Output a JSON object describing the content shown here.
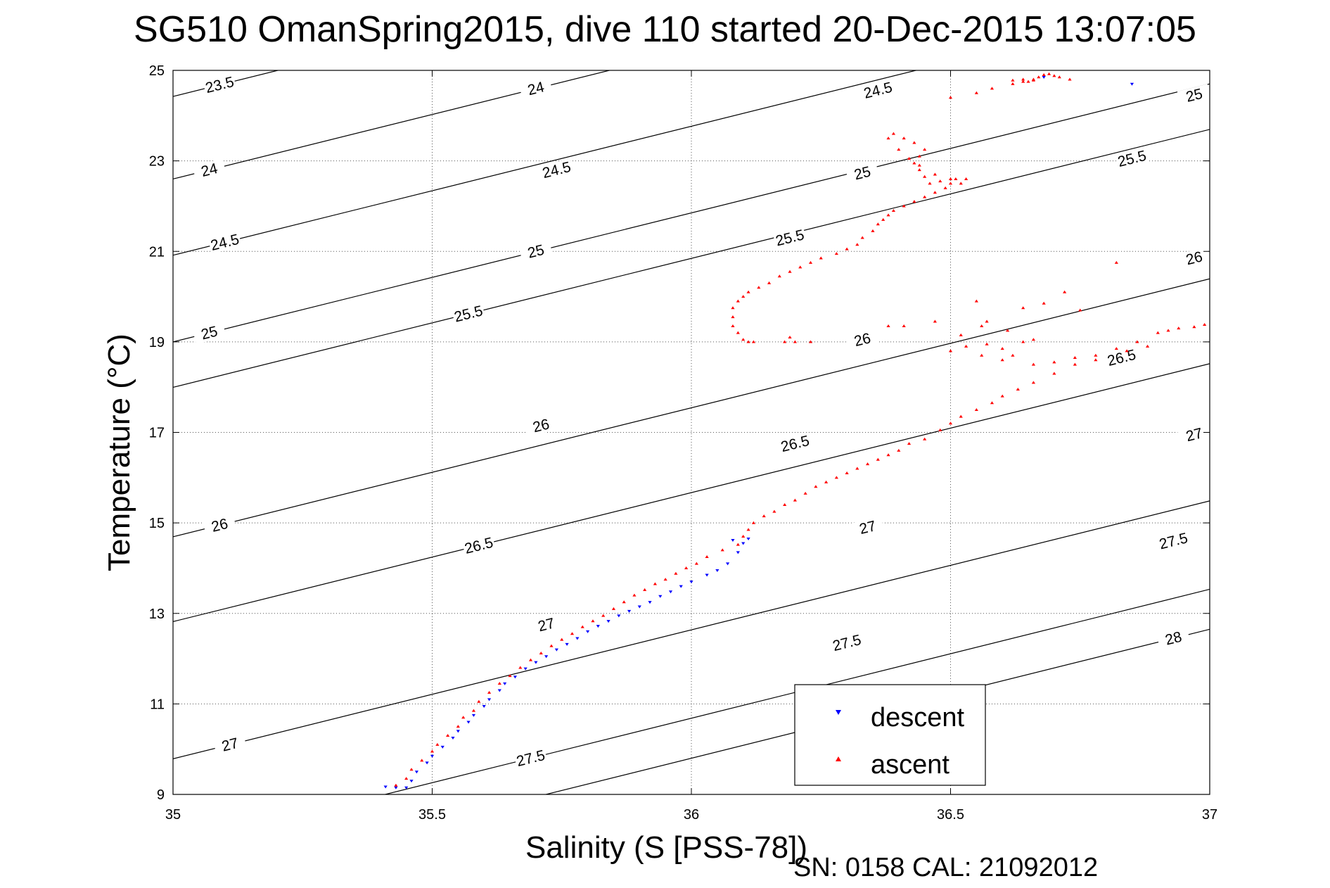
{
  "chart_data": {
    "type": "scatter",
    "title": "SG510 OmanSpring2015, dive 110 started 20-Dec-2015 13:07:05",
    "xlabel": "Salinity (S [PSS-78])",
    "ylabel": "Temperature (°C)",
    "xlim": [
      35,
      37
    ],
    "ylim": [
      9,
      25
    ],
    "xticks": [
      "35",
      "35.5",
      "36",
      "36.5",
      "37"
    ],
    "yticks": [
      "9",
      "11",
      "13",
      "15",
      "17",
      "19",
      "21",
      "23",
      "25"
    ],
    "grid": true,
    "legend": {
      "placement": "bottom-right",
      "entries": [
        "descent",
        "ascent"
      ]
    },
    "colors": {
      "descent": "#0000ff",
      "ascent": "#ff0000",
      "contour": "#000000"
    },
    "density_contours": [
      {
        "level": "23.5",
        "label_points": [
          [
            35.09,
            24.68
          ]
        ]
      },
      {
        "level": "24",
        "label_points": [
          [
            35.07,
            22.8
          ],
          [
            35.7,
            24.6
          ]
        ]
      },
      {
        "level": "24.5",
        "label_points": [
          [
            35.1,
            21.2
          ],
          [
            35.74,
            22.8
          ],
          [
            36.36,
            24.56
          ]
        ]
      },
      {
        "level": "25",
        "label_points": [
          [
            35.07,
            19.2
          ],
          [
            35.7,
            21.0
          ],
          [
            36.33,
            22.73
          ],
          [
            36.97,
            24.45
          ]
        ]
      },
      {
        "level": "25.5",
        "label_points": [
          [
            35.57,
            19.62
          ],
          [
            36.19,
            21.3
          ],
          [
            36.85,
            23.05
          ]
        ]
      },
      {
        "level": "26",
        "label_points": [
          [
            35.09,
            14.95
          ],
          [
            35.71,
            17.15
          ],
          [
            36.33,
            19.05
          ],
          [
            36.97,
            20.85
          ]
        ]
      },
      {
        "level": "26.5",
        "label_points": [
          [
            35.59,
            14.5
          ],
          [
            36.2,
            16.75
          ],
          [
            36.83,
            18.65
          ]
        ]
      },
      {
        "level": "27",
        "label_points": [
          [
            35.11,
            10.1
          ],
          [
            35.72,
            12.75
          ],
          [
            36.34,
            14.9
          ],
          [
            36.97,
            16.95
          ]
        ]
      },
      {
        "level": "27.5",
        "label_points": [
          [
            35.69,
            9.8
          ],
          [
            36.3,
            12.35
          ],
          [
            36.93,
            14.6
          ]
        ]
      },
      {
        "level": "28",
        "label_points": [
          [
            36.93,
            12.45
          ]
        ]
      }
    ],
    "series": [
      {
        "name": "descent",
        "marker": "triangle-down",
        "points": [
          [
            35.41,
            9.17
          ],
          [
            35.43,
            9.15
          ],
          [
            35.45,
            9.15
          ],
          [
            35.46,
            9.3
          ],
          [
            35.47,
            9.5
          ],
          [
            35.49,
            9.7
          ],
          [
            35.5,
            9.85
          ],
          [
            35.52,
            10.05
          ],
          [
            35.54,
            10.25
          ],
          [
            35.55,
            10.4
          ],
          [
            35.57,
            10.6
          ],
          [
            35.58,
            10.75
          ],
          [
            35.6,
            10.95
          ],
          [
            35.61,
            11.1
          ],
          [
            35.63,
            11.3
          ],
          [
            35.64,
            11.45
          ],
          [
            35.66,
            11.6
          ],
          [
            35.68,
            11.78
          ],
          [
            35.7,
            11.92
          ],
          [
            35.72,
            12.05
          ],
          [
            35.74,
            12.2
          ],
          [
            35.76,
            12.32
          ],
          [
            35.78,
            12.45
          ],
          [
            35.8,
            12.6
          ],
          [
            35.82,
            12.72
          ],
          [
            35.84,
            12.83
          ],
          [
            35.86,
            12.95
          ],
          [
            35.88,
            13.05
          ],
          [
            35.9,
            13.15
          ],
          [
            35.92,
            13.25
          ],
          [
            35.94,
            13.38
          ],
          [
            35.96,
            13.48
          ],
          [
            35.98,
            13.6
          ],
          [
            36.0,
            13.7
          ],
          [
            36.03,
            13.85
          ],
          [
            36.05,
            13.95
          ],
          [
            36.07,
            14.1
          ],
          [
            36.08,
            14.62
          ],
          [
            36.1,
            14.55
          ],
          [
            36.11,
            14.65
          ],
          [
            36.09,
            14.35
          ],
          [
            36.85,
            24.7
          ],
          [
            36.68,
            24.85
          ]
        ]
      },
      {
        "name": "ascent",
        "marker": "triangle-up",
        "points": [
          [
            35.43,
            9.2
          ],
          [
            35.45,
            9.35
          ],
          [
            35.46,
            9.55
          ],
          [
            35.48,
            9.75
          ],
          [
            35.5,
            9.95
          ],
          [
            35.51,
            10.1
          ],
          [
            35.53,
            10.3
          ],
          [
            35.55,
            10.5
          ],
          [
            35.56,
            10.7
          ],
          [
            35.58,
            10.85
          ],
          [
            35.59,
            11.05
          ],
          [
            35.61,
            11.25
          ],
          [
            35.63,
            11.45
          ],
          [
            35.65,
            11.62
          ],
          [
            35.67,
            11.8
          ],
          [
            35.69,
            11.97
          ],
          [
            35.71,
            12.12
          ],
          [
            35.73,
            12.28
          ],
          [
            35.75,
            12.42
          ],
          [
            35.77,
            12.55
          ],
          [
            35.79,
            12.7
          ],
          [
            35.81,
            12.83
          ],
          [
            35.83,
            12.95
          ],
          [
            35.85,
            13.1
          ],
          [
            35.87,
            13.25
          ],
          [
            35.89,
            13.4
          ],
          [
            35.91,
            13.52
          ],
          [
            35.93,
            13.65
          ],
          [
            35.95,
            13.75
          ],
          [
            35.97,
            13.88
          ],
          [
            35.99,
            14.0
          ],
          [
            36.01,
            14.1
          ],
          [
            36.03,
            14.25
          ],
          [
            36.06,
            14.4
          ],
          [
            36.09,
            14.52
          ],
          [
            36.1,
            14.7
          ],
          [
            36.11,
            14.85
          ],
          [
            36.12,
            15.0
          ],
          [
            36.14,
            15.15
          ],
          [
            36.16,
            15.25
          ],
          [
            36.18,
            15.4
          ],
          [
            36.2,
            15.5
          ],
          [
            36.22,
            15.65
          ],
          [
            36.24,
            15.8
          ],
          [
            36.26,
            15.9
          ],
          [
            36.28,
            16.0
          ],
          [
            36.3,
            16.1
          ],
          [
            36.32,
            16.2
          ],
          [
            36.34,
            16.3
          ],
          [
            36.36,
            16.4
          ],
          [
            36.38,
            16.5
          ],
          [
            36.4,
            16.6
          ],
          [
            36.42,
            16.75
          ],
          [
            36.45,
            16.85
          ],
          [
            36.48,
            17.05
          ],
          [
            36.5,
            17.2
          ],
          [
            36.52,
            17.35
          ],
          [
            36.55,
            17.5
          ],
          [
            36.58,
            17.65
          ],
          [
            36.6,
            17.8
          ],
          [
            36.63,
            17.95
          ],
          [
            36.66,
            18.1
          ],
          [
            36.7,
            18.3
          ],
          [
            36.74,
            18.5
          ],
          [
            36.78,
            18.7
          ],
          [
            36.82,
            18.85
          ],
          [
            36.86,
            19.0
          ],
          [
            36.9,
            19.2
          ],
          [
            36.94,
            19.3
          ],
          [
            36.97,
            19.33
          ],
          [
            36.99,
            19.38
          ],
          [
            36.92,
            19.25
          ],
          [
            36.88,
            18.9
          ],
          [
            36.84,
            18.8
          ],
          [
            36.78,
            18.6
          ],
          [
            36.74,
            18.65
          ],
          [
            36.7,
            18.55
          ],
          [
            36.66,
            18.5
          ],
          [
            36.62,
            18.7
          ],
          [
            36.6,
            18.85
          ],
          [
            36.57,
            18.95
          ],
          [
            36.53,
            18.9
          ],
          [
            36.5,
            18.8
          ],
          [
            36.52,
            19.15
          ],
          [
            36.56,
            19.35
          ],
          [
            36.61,
            19.25
          ],
          [
            36.64,
            19.0
          ],
          [
            36.66,
            19.05
          ],
          [
            36.6,
            18.6
          ],
          [
            36.56,
            18.7
          ],
          [
            36.64,
            19.75
          ],
          [
            36.68,
            19.85
          ],
          [
            36.72,
            20.1
          ],
          [
            36.75,
            19.7
          ],
          [
            36.57,
            19.45
          ],
          [
            36.47,
            19.45
          ],
          [
            36.41,
            19.35
          ],
          [
            36.38,
            19.35
          ],
          [
            36.55,
            19.9
          ],
          [
            36.82,
            20.75
          ],
          [
            36.23,
            19.0
          ],
          [
            36.2,
            19.0
          ],
          [
            36.19,
            19.1
          ],
          [
            36.18,
            19.0
          ],
          [
            36.12,
            19.0
          ],
          [
            36.11,
            19.0
          ],
          [
            36.1,
            19.05
          ],
          [
            36.09,
            19.2
          ],
          [
            36.08,
            19.35
          ],
          [
            36.08,
            19.55
          ],
          [
            36.08,
            19.75
          ],
          [
            36.09,
            19.9
          ],
          [
            36.1,
            20.0
          ],
          [
            36.11,
            20.1
          ],
          [
            36.13,
            20.2
          ],
          [
            36.15,
            20.3
          ],
          [
            36.17,
            20.45
          ],
          [
            36.19,
            20.55
          ],
          [
            36.21,
            20.65
          ],
          [
            36.23,
            20.75
          ],
          [
            36.25,
            20.85
          ],
          [
            36.28,
            20.95
          ],
          [
            36.3,
            21.05
          ],
          [
            36.32,
            21.15
          ],
          [
            36.33,
            21.3
          ],
          [
            36.35,
            21.45
          ],
          [
            36.36,
            21.6
          ],
          [
            36.37,
            21.7
          ],
          [
            36.38,
            21.8
          ],
          [
            36.39,
            21.9
          ],
          [
            36.41,
            22.0
          ],
          [
            36.43,
            22.1
          ],
          [
            36.45,
            22.2
          ],
          [
            36.47,
            22.3
          ],
          [
            36.49,
            22.4
          ],
          [
            36.5,
            22.5
          ],
          [
            36.51,
            22.6
          ],
          [
            36.48,
            22.55
          ],
          [
            36.46,
            22.5
          ],
          [
            36.45,
            22.65
          ],
          [
            36.44,
            22.8
          ],
          [
            36.43,
            22.95
          ],
          [
            36.44,
            23.1
          ],
          [
            36.45,
            23.25
          ],
          [
            36.43,
            23.4
          ],
          [
            36.41,
            23.5
          ],
          [
            36.39,
            23.6
          ],
          [
            36.38,
            23.5
          ],
          [
            36.4,
            23.25
          ],
          [
            36.42,
            23.05
          ],
          [
            36.44,
            22.9
          ],
          [
            36.47,
            22.7
          ],
          [
            36.5,
            22.6
          ],
          [
            36.52,
            22.5
          ],
          [
            36.53,
            22.6
          ],
          [
            36.5,
            24.4
          ],
          [
            36.55,
            24.5
          ],
          [
            36.58,
            24.6
          ],
          [
            36.62,
            24.7
          ],
          [
            36.65,
            24.75
          ],
          [
            36.66,
            24.8
          ],
          [
            36.67,
            24.85
          ],
          [
            36.68,
            24.9
          ],
          [
            36.69,
            24.92
          ],
          [
            36.7,
            24.88
          ],
          [
            36.66,
            24.78
          ],
          [
            36.64,
            24.75
          ],
          [
            36.71,
            24.85
          ],
          [
            36.73,
            24.8
          ],
          [
            36.64,
            24.8
          ],
          [
            36.62,
            24.78
          ]
        ]
      }
    ]
  },
  "footer": {
    "note": "SN: 0158  CAL: 21092012"
  }
}
